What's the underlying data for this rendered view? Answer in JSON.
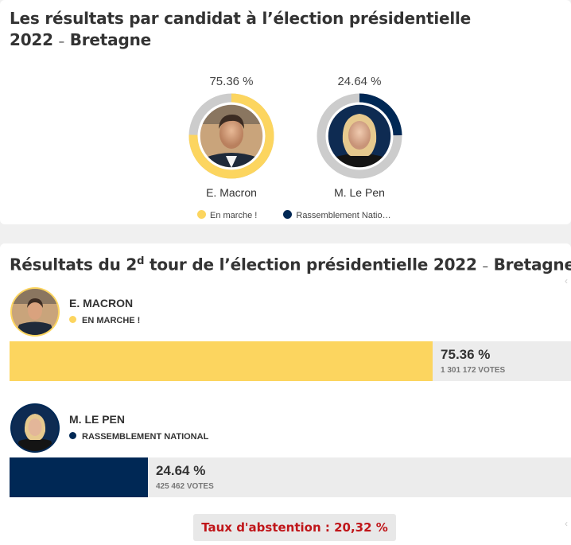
{
  "section1": {
    "title": "Les résultats par candidat à l’élection présidentielle 2022",
    "title_sep": "–",
    "region": "Bretagne"
  },
  "section2": {
    "title_pre": "Résultats du 2",
    "title_sup": "d",
    "title_post": " tour de l’élection présidentielle 2022",
    "title_sep": "–",
    "region": "Bretagne"
  },
  "chart_data": {
    "type": "pie",
    "title": "Les résultats par candidat à l’élection présidentielle 2022 – Bretagne",
    "categories": [
      "E. Macron",
      "M. Le Pen"
    ],
    "values": [
      75.36,
      24.64
    ],
    "value_labels": [
      "75.36 %",
      "24.64 %"
    ],
    "legend": [
      "En marche !",
      "Rassemblement Natio…"
    ],
    "legend_placement": "bottom",
    "colors": [
      "#fcd55f",
      "#002855"
    ],
    "track_color": "#cccccc"
  },
  "candidates": [
    {
      "name": "E. MACRON",
      "party": "EN MARCHE !",
      "pct_label": "75.36 %",
      "pct": 75.36,
      "votes": "1 301 172 VOTES",
      "color": "#fcd55f",
      "avatar_icon": "macron-portrait-icon"
    },
    {
      "name": "M. LE PEN",
      "party": "RASSEMBLEMENT NATIONAL",
      "pct_label": "24.64 %",
      "pct": 24.64,
      "votes": "425 462 VOTES",
      "color": "#002855",
      "avatar_icon": "lepen-portrait-icon"
    }
  ],
  "abstention": "Taux d'abstention : 20,32 %"
}
